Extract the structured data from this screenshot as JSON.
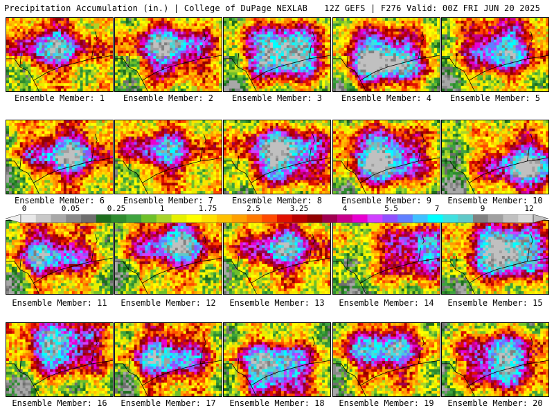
{
  "header": {
    "title": "Precipitation Accumulation (in.) | College of DuPage NEXLAB",
    "valid": "12Z GEFS | F276 Valid: 00Z FRI JUN 20 2025"
  },
  "member_prefix": "Ensemble Member: ",
  "members": [
    {
      "label": "Ensemble Member: 1",
      "seed": 11,
      "intensity": 0.55,
      "core": [
        0.42,
        0.38
      ]
    },
    {
      "label": "Ensemble Member: 2",
      "seed": 23,
      "intensity": 0.62,
      "core": [
        0.5,
        0.4
      ]
    },
    {
      "label": "Ensemble Member: 3",
      "seed": 37,
      "intensity": 0.78,
      "core": [
        0.55,
        0.45
      ]
    },
    {
      "label": "Ensemble Member: 4",
      "seed": 41,
      "intensity": 0.8,
      "core": [
        0.45,
        0.55
      ]
    },
    {
      "label": "Ensemble Member: 5",
      "seed": 53,
      "intensity": 0.58,
      "core": [
        0.55,
        0.4
      ]
    },
    {
      "label": "Ensemble Member: 6",
      "seed": 61,
      "intensity": 0.62,
      "core": [
        0.55,
        0.45
      ]
    },
    {
      "label": "Ensemble Member: 7",
      "seed": 73,
      "intensity": 0.5,
      "core": [
        0.45,
        0.4
      ]
    },
    {
      "label": "Ensemble Member: 8",
      "seed": 83,
      "intensity": 0.74,
      "core": [
        0.55,
        0.45
      ]
    },
    {
      "label": "Ensemble Member: 9",
      "seed": 97,
      "intensity": 0.74,
      "core": [
        0.45,
        0.5
      ]
    },
    {
      "label": "Ensemble Member: 10",
      "seed": 101,
      "intensity": 0.66,
      "core": [
        0.78,
        0.6
      ]
    },
    {
      "label": "Ensemble Member: 11",
      "seed": 113,
      "intensity": 0.55,
      "core": [
        0.4,
        0.45
      ]
    },
    {
      "label": "Ensemble Member: 12",
      "seed": 127,
      "intensity": 0.62,
      "core": [
        0.55,
        0.3
      ]
    },
    {
      "label": "Ensemble Member: 13",
      "seed": 131,
      "intensity": 0.55,
      "core": [
        0.55,
        0.35
      ]
    },
    {
      "label": "Ensemble Member: 14",
      "seed": 149,
      "intensity": 0.52,
      "core": [
        0.8,
        0.4
      ]
    },
    {
      "label": "Ensemble Member: 15",
      "seed": 157,
      "intensity": 0.82,
      "core": [
        0.6,
        0.4
      ]
    },
    {
      "label": "Ensemble Member: 16",
      "seed": 163,
      "intensity": 0.64,
      "core": [
        0.5,
        0.3
      ]
    },
    {
      "label": "Ensemble Member: 17",
      "seed": 173,
      "intensity": 0.58,
      "core": [
        0.48,
        0.45
      ]
    },
    {
      "label": "Ensemble Member: 18",
      "seed": 181,
      "intensity": 0.7,
      "core": [
        0.45,
        0.6
      ]
    },
    {
      "label": "Ensemble Member: 19",
      "seed": 191,
      "intensity": 0.6,
      "core": [
        0.45,
        0.35
      ]
    },
    {
      "label": "Ensemble Member: 20",
      "seed": 197,
      "intensity": 0.66,
      "core": [
        0.55,
        0.5
      ]
    }
  ],
  "colorbar": {
    "labels": [
      "0",
      "0.05",
      "0.25",
      "1",
      "1.75",
      "2.5",
      "3.25",
      "4",
      "5.5",
      "7",
      "9",
      "12"
    ],
    "colors": [
      "#e8e8e8",
      "#c8c8c8",
      "#a8a8a8",
      "#888888",
      "#6e6e6e",
      "#1e6e1e",
      "#2e8b2e",
      "#3ea33e",
      "#6ec02a",
      "#a8d42a",
      "#e6f000",
      "#ffff00",
      "#ffe000",
      "#ffc000",
      "#ffa000",
      "#ff7800",
      "#ff4a00",
      "#e01000",
      "#b80000",
      "#900000",
      "#a00050",
      "#c8008c",
      "#e800d0",
      "#d040ff",
      "#9050ff",
      "#6080ff",
      "#40c0ff",
      "#00ffff",
      "#40e0e0",
      "#60c8c8",
      "#808080",
      "#a0a0a0",
      "#c0c0c0",
      "#d8d8d8"
    ]
  }
}
